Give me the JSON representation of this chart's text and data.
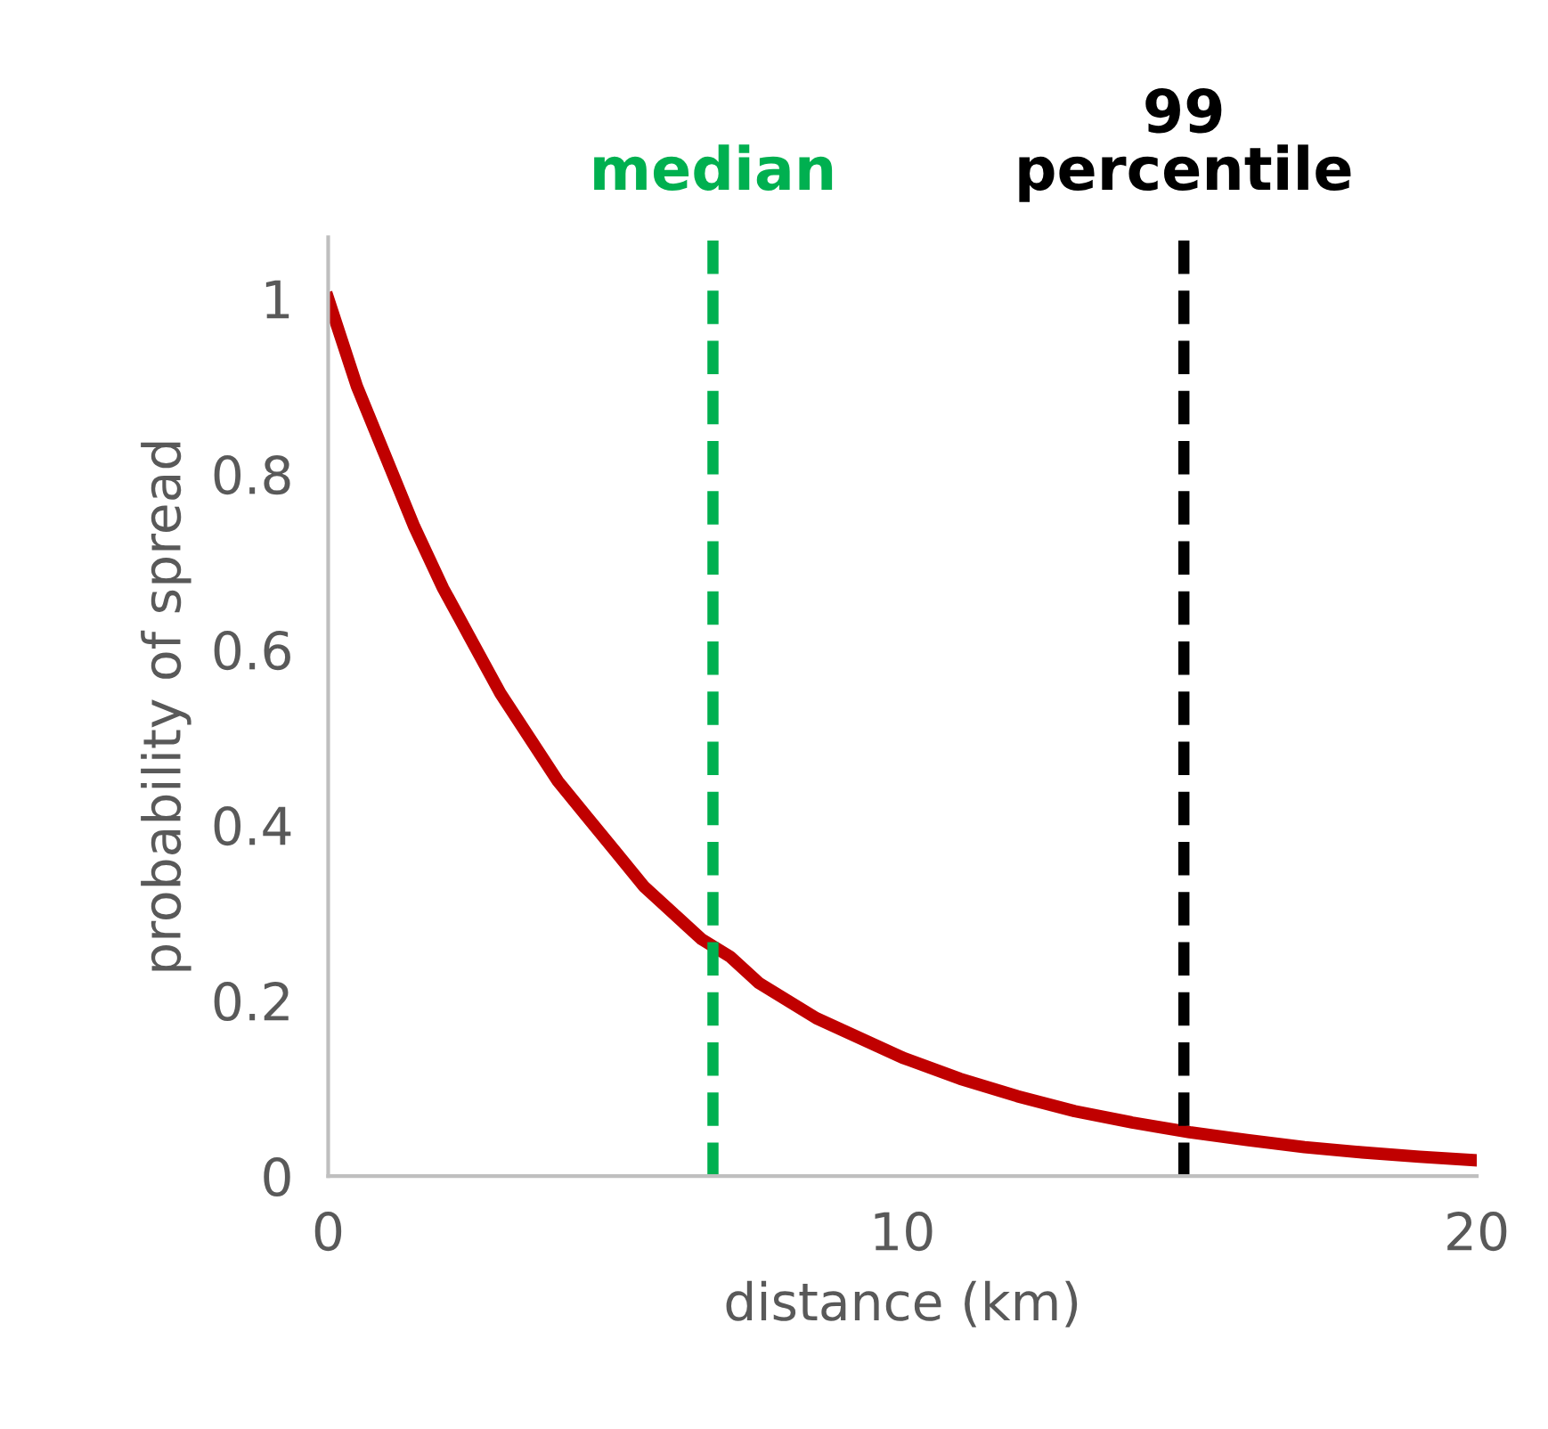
{
  "chart_data": {
    "type": "line",
    "xlabel": "distance (km)",
    "ylabel": "probability of spread",
    "x": [
      0,
      0.5,
      1,
      1.5,
      2,
      2.5,
      3,
      3.5,
      4,
      4.5,
      5,
      5.5,
      6,
      6.5,
      7,
      7.5,
      8,
      8.5,
      9,
      9.5,
      10,
      11,
      12,
      13,
      14,
      15,
      16,
      17,
      18,
      19,
      20
    ],
    "series": [
      {
        "color": "#c00000",
        "values": [
          1,
          0.9,
          0.82,
          0.74,
          0.67,
          0.61,
          0.55,
          0.5,
          0.45,
          0.41,
          0.37,
          0.33,
          0.3,
          0.27,
          0.25,
          0.22,
          0.2,
          0.18,
          0.165,
          0.15,
          0.135,
          0.111,
          0.091,
          0.074,
          0.061,
          0.05,
          0.041,
          0.033,
          0.027,
          0.022,
          0.018
        ]
      }
    ],
    "xlim": [
      0,
      20
    ],
    "ylim": [
      0,
      1.07
    ],
    "xticks": [
      0,
      10,
      20
    ],
    "yticks": [
      0,
      0.2,
      0.4,
      0.6,
      0.8,
      1
    ],
    "ref_lines": [
      {
        "axis": "x",
        "value": 6.7,
        "label": "median",
        "color": "#00b050",
        "line_style": "dashed"
      },
      {
        "axis": "x",
        "value": 14.9,
        "label": "99\npercentile",
        "color": "#000000",
        "line_style": "dashed"
      }
    ],
    "grid": false,
    "legend": false,
    "marker": "none",
    "line_style": "solid"
  }
}
